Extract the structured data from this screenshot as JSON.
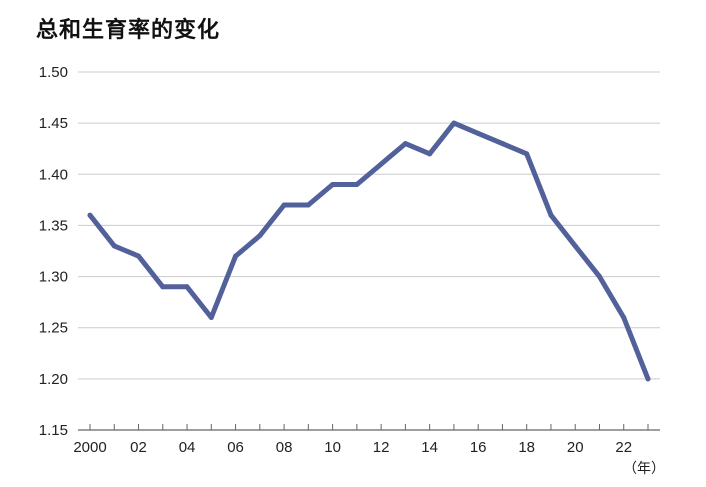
{
  "chart_data": {
    "type": "line",
    "title": "总和生育率的变化",
    "xlabel": "（年）",
    "ylabel": "",
    "x": [
      2000,
      2001,
      2002,
      2003,
      2004,
      2005,
      2006,
      2007,
      2008,
      2009,
      2010,
      2011,
      2012,
      2013,
      2014,
      2015,
      2016,
      2017,
      2018,
      2019,
      2020,
      2021,
      2022,
      2023
    ],
    "series": [
      {
        "values": [
          1.36,
          1.33,
          1.32,
          1.29,
          1.29,
          1.26,
          1.32,
          1.34,
          1.37,
          1.37,
          1.39,
          1.39,
          1.41,
          1.43,
          1.42,
          1.45,
          1.44,
          1.43,
          1.42,
          1.36,
          1.33,
          1.3,
          1.26,
          1.2
        ]
      }
    ],
    "ylim": [
      1.15,
      1.5
    ],
    "xlim": [
      2000,
      2023
    ],
    "yticks": [
      "1.15",
      "1.20",
      "1.25",
      "1.30",
      "1.35",
      "1.40",
      "1.45",
      "1.50"
    ],
    "xtick_values": [
      2000,
      2002,
      2004,
      2006,
      2008,
      2010,
      2012,
      2014,
      2016,
      2018,
      2020,
      2022
    ],
    "xtick_labels": [
      "2000",
      "02",
      "04",
      "06",
      "08",
      "10",
      "12",
      "14",
      "16",
      "18",
      "20",
      "22"
    ],
    "grid": true,
    "line_color": "#52619a",
    "grid_color": "#cccccc"
  }
}
